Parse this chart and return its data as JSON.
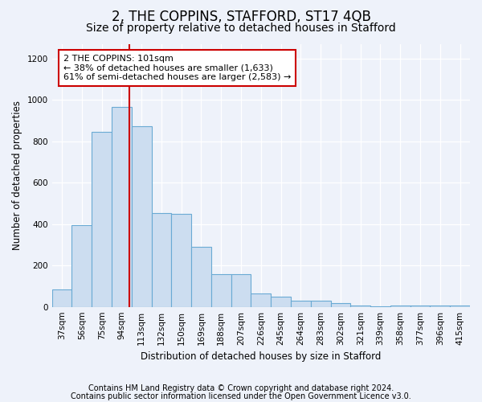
{
  "title1": "2, THE COPPINS, STAFFORD, ST17 4QB",
  "title2": "Size of property relative to detached houses in Stafford",
  "xlabel": "Distribution of detached houses by size in Stafford",
  "ylabel": "Number of detached properties",
  "categories": [
    "37sqm",
    "56sqm",
    "75sqm",
    "94sqm",
    "113sqm",
    "132sqm",
    "150sqm",
    "169sqm",
    "188sqm",
    "207sqm",
    "226sqm",
    "245sqm",
    "264sqm",
    "283sqm",
    "302sqm",
    "321sqm",
    "339sqm",
    "358sqm",
    "377sqm",
    "396sqm",
    "415sqm"
  ],
  "values": [
    85,
    395,
    845,
    965,
    875,
    455,
    450,
    290,
    160,
    160,
    65,
    50,
    30,
    28,
    20,
    5,
    2,
    5,
    5,
    5,
    5
  ],
  "bar_color": "#ccddf0",
  "bar_edge_color": "#6aaad4",
  "red_line_color": "#cc0000",
  "annotation_text": "2 THE COPPINS: 101sqm\n← 38% of detached houses are smaller (1,633)\n61% of semi-detached houses are larger (2,583) →",
  "annotation_box_color": "white",
  "annotation_box_edge": "#cc0000",
  "ylim": [
    0,
    1270
  ],
  "yticks": [
    0,
    200,
    400,
    600,
    800,
    1000,
    1200
  ],
  "footer1": "Contains HM Land Registry data © Crown copyright and database right 2024.",
  "footer2": "Contains public sector information licensed under the Open Government Licence v3.0.",
  "background_color": "#eef2fa",
  "plot_background": "#eef2fa",
  "grid_color": "#ffffff",
  "title1_fontsize": 12,
  "title2_fontsize": 10,
  "axis_label_fontsize": 8.5,
  "tick_fontsize": 7.5,
  "annotation_fontsize": 8,
  "footer_fontsize": 7
}
